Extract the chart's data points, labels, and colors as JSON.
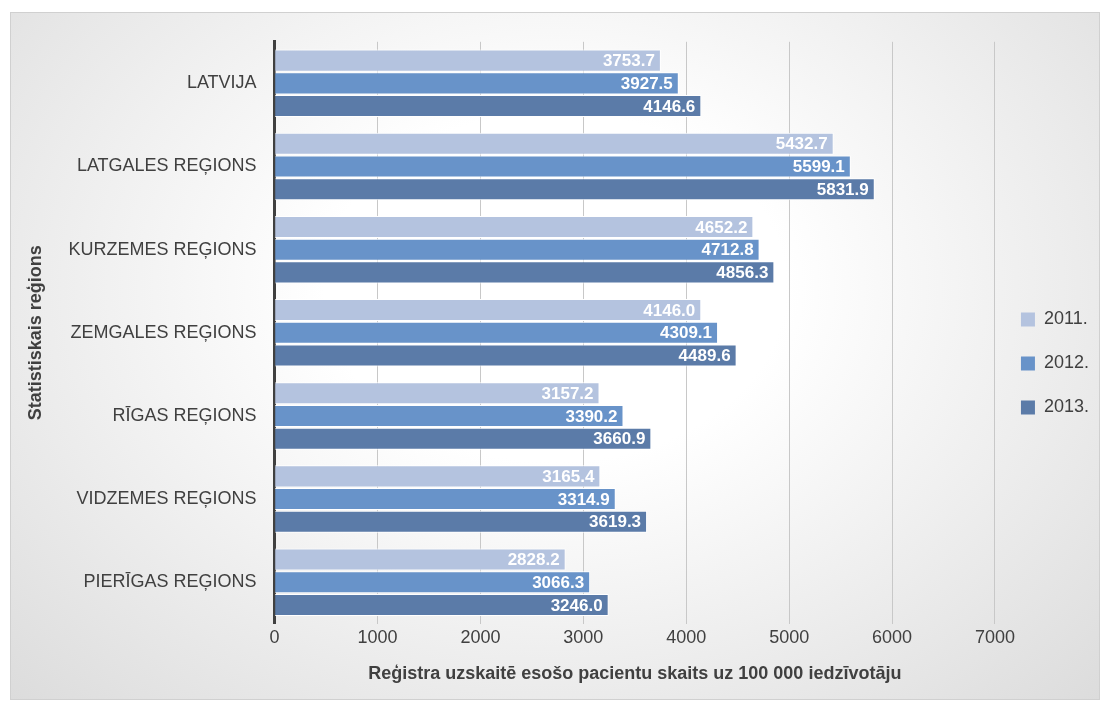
{
  "chart_data": {
    "type": "bar",
    "orientation": "horizontal",
    "xlabel": "Reģistra uzskaitē esošo pacientu skaits uz 100 000 iedzīvotāju",
    "ylabel": "Statistiskais reģions",
    "categories": [
      "LATVIJA",
      "LATGALES REĢIONS",
      "KURZEMES REĢIONS",
      "ZEMGALES REĢIONS",
      "RĪGAS REĢIONS",
      "VIDZEMES REĢIONS",
      "PIERĪGAS REĢIONS"
    ],
    "series": [
      {
        "name": "2011.",
        "color": "#b4c3df",
        "values": [
          3753.7,
          5432.7,
          4652.2,
          4146.0,
          3157.2,
          3165.4,
          2828.2
        ],
        "value_labels": [
          "3753.7",
          "5432.7",
          "4652.2",
          "4146.0",
          "3157.2",
          "3165.4",
          "2828.2"
        ]
      },
      {
        "name": "2012.",
        "color": "#6893c9",
        "values": [
          3927.5,
          5599.1,
          4712.8,
          4309.1,
          3390.2,
          3314.9,
          3066.3
        ],
        "value_labels": [
          "3927.5",
          "5599.1",
          "4712.8",
          "4309.1",
          "3390.2",
          "3314.9",
          "3066.3"
        ]
      },
      {
        "name": "2013.",
        "color": "#5b7ba8",
        "values": [
          4146.6,
          5831.9,
          4856.3,
          4489.6,
          3660.9,
          3619.3,
          3246.0
        ],
        "value_labels": [
          "4146.6",
          "5831.9",
          "4856.3",
          "4489.6",
          "3660.9",
          "3619.3",
          "3246.0"
        ]
      }
    ],
    "xlim": [
      0,
      7000
    ],
    "xticks": [
      0,
      1000,
      2000,
      3000,
      4000,
      5000,
      6000,
      7000
    ],
    "grid": "x",
    "legend": "right"
  }
}
